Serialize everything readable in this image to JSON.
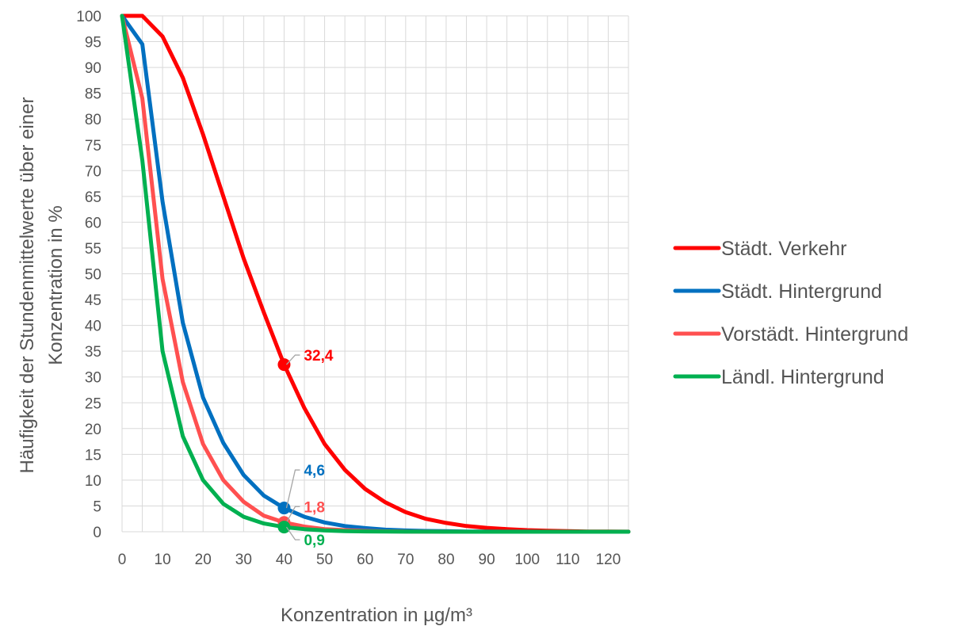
{
  "chart_data": {
    "type": "line",
    "xlabel": "Konzentration in µg/m³",
    "ylabel_lines": [
      "Häufigkeit der Stundenmittelwerte über einer",
      "Konzentration in %"
    ],
    "xlim": [
      0,
      125
    ],
    "ylim": [
      0,
      100
    ],
    "x_ticks": [
      0,
      10,
      20,
      30,
      40,
      50,
      60,
      70,
      80,
      90,
      100,
      110,
      120
    ],
    "y_ticks": [
      0,
      5,
      10,
      15,
      20,
      25,
      30,
      35,
      40,
      45,
      50,
      55,
      60,
      65,
      70,
      75,
      80,
      85,
      90,
      95,
      100
    ],
    "x_tick_labels": [
      "0",
      "10",
      "20",
      "30",
      "40",
      "50",
      "60",
      "70",
      "80",
      "90",
      "100",
      "110",
      "120"
    ],
    "y_tick_labels": [
      "0",
      "5",
      "10",
      "15",
      "20",
      "25",
      "30",
      "35",
      "40",
      "45",
      "50",
      "55",
      "60",
      "65",
      "70",
      "75",
      "80",
      "85",
      "90",
      "95",
      "100"
    ],
    "grid": true,
    "legend_position": "right",
    "x": [
      0,
      5,
      10,
      15,
      20,
      25,
      30,
      35,
      40,
      45,
      50,
      55,
      60,
      65,
      70,
      75,
      80,
      85,
      90,
      95,
      100,
      105,
      110,
      115,
      120,
      125
    ],
    "series": [
      {
        "name": "Städt. Verkehr",
        "color": "#ff0000",
        "values": [
          100,
          100,
          96,
          88,
          77,
          65,
          53,
          42.5,
          32.4,
          24,
          17,
          12,
          8.3,
          5.7,
          3.8,
          2.5,
          1.7,
          1.1,
          0.75,
          0.5,
          0.3,
          0.2,
          0.1,
          0.05,
          0.03,
          0.02
        ]
      },
      {
        "name": "Städt. Hintergrund",
        "color": "#0070c0",
        "values": [
          100,
          94.5,
          64,
          40.5,
          26,
          17.2,
          11,
          7,
          4.6,
          2.9,
          1.8,
          1.1,
          0.7,
          0.4,
          0.25,
          0.15,
          0.1,
          0.05,
          0.03,
          0.02,
          0.01,
          0,
          0,
          0,
          0,
          0
        ]
      },
      {
        "name": "Vorstädt. Hintergrund",
        "color": "#ff5050",
        "values": [
          100,
          84,
          49,
          29,
          17,
          10,
          5.8,
          3.1,
          1.8,
          1.0,
          0.5,
          0.3,
          0.15,
          0.08,
          0.04,
          0.02,
          0.01,
          0,
          0,
          0,
          0,
          0,
          0,
          0,
          0,
          0
        ]
      },
      {
        "name": "Ländl. Hintergrund",
        "color": "#00b050",
        "values": [
          100,
          72,
          35,
          18.5,
          10,
          5.4,
          2.9,
          1.6,
          0.9,
          0.5,
          0.25,
          0.12,
          0.06,
          0.03,
          0.02,
          0.01,
          0,
          0,
          0,
          0,
          0,
          0,
          0,
          0,
          0,
          0
        ]
      }
    ],
    "annotations": [
      {
        "series": "Städt. Verkehr",
        "x": 40,
        "y": 32.4,
        "label": "32,4",
        "color": "#ff0000"
      },
      {
        "series": "Städt. Hintergrund",
        "x": 40,
        "y": 4.6,
        "label": "4,6",
        "color": "#0070c0"
      },
      {
        "series": "Vorstädt. Hintergrund",
        "x": 40,
        "y": 1.8,
        "label": "1,8",
        "color": "#ff5050"
      },
      {
        "series": "Ländl. Hintergrund",
        "x": 40,
        "y": 0.9,
        "label": "0,9",
        "color": "#00b050"
      }
    ]
  }
}
